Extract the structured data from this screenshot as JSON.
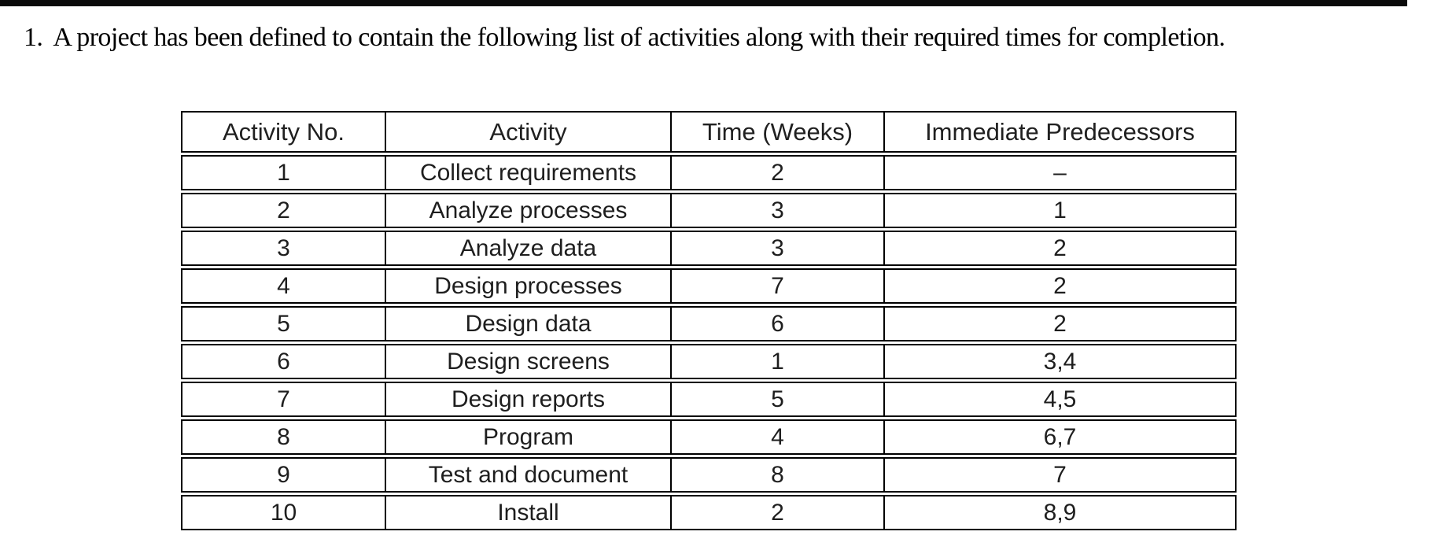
{
  "question": {
    "number": "1.",
    "text": "A project has been defined to contain the following list of activities along with their required times for completion."
  },
  "table": {
    "headers": [
      "Activity No.",
      "Activity",
      "Time (Weeks)",
      "Immediate Predecessors"
    ],
    "rows": [
      {
        "no": "1",
        "activity": "Collect requirements",
        "time": "2",
        "predecessors": "–"
      },
      {
        "no": "2",
        "activity": "Analyze processes",
        "time": "3",
        "predecessors": "1"
      },
      {
        "no": "3",
        "activity": "Analyze data",
        "time": "3",
        "predecessors": "2"
      },
      {
        "no": "4",
        "activity": "Design processes",
        "time": "7",
        "predecessors": "2"
      },
      {
        "no": "5",
        "activity": "Design data",
        "time": "6",
        "predecessors": "2"
      },
      {
        "no": "6",
        "activity": "Design screens",
        "time": "1",
        "predecessors": "3,4"
      },
      {
        "no": "7",
        "activity": "Design reports",
        "time": "5",
        "predecessors": "4,5"
      },
      {
        "no": "8",
        "activity": "Program",
        "time": "4",
        "predecessors": "6,7"
      },
      {
        "no": "9",
        "activity": "Test and document",
        "time": "8",
        "predecessors": "7"
      },
      {
        "no": "10",
        "activity": "Install",
        "time": "2",
        "predecessors": "8,9"
      }
    ]
  },
  "colors": {
    "top_bar": "#0a0a0a",
    "table_border": "#000000",
    "text": "#000000"
  }
}
